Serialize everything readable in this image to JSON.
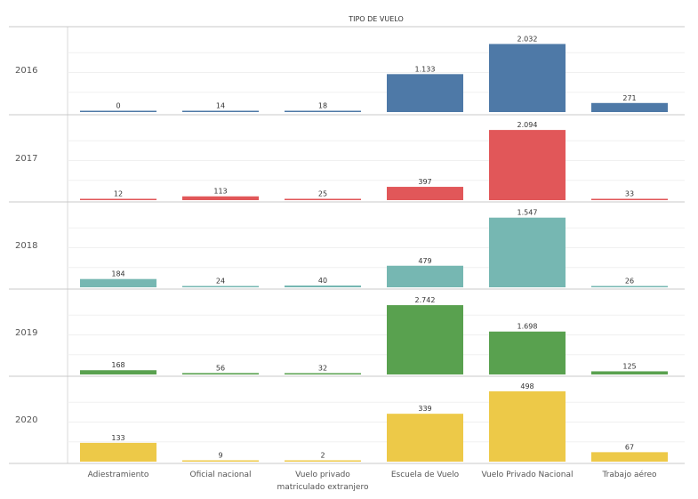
{
  "chart_data": {
    "type": "bar",
    "title": "TIPO DE VUELO",
    "categories": [
      "Adiestramiento",
      "Oficial nacional",
      "Vuelo privado matriculado extranjero",
      "Escuela de Vuelo",
      "Vuelo Privado Nacional",
      "Trabajo aéreo"
    ],
    "category_label_lines": [
      [
        "Adiestramiento"
      ],
      [
        "Oficial nacional"
      ],
      [
        "Vuelo privado",
        "matriculado extranjero"
      ],
      [
        "Escuela de Vuelo"
      ],
      [
        "Vuelo Privado Nacional"
      ],
      [
        "Trabajo aéreo"
      ]
    ],
    "series": [
      {
        "row": "2016",
        "values": [
          0,
          14,
          18,
          1133,
          2032,
          271
        ],
        "labels": [
          "0",
          "14",
          "18",
          "1.133",
          "2.032",
          "271"
        ],
        "color": "#4e79a7"
      },
      {
        "row": "2017",
        "values": [
          12,
          113,
          25,
          397,
          2094,
          33
        ],
        "labels": [
          "12",
          "113",
          "25",
          "397",
          "2.094",
          "33"
        ],
        "color": "#e15759"
      },
      {
        "row": "2018",
        "values": [
          184,
          24,
          40,
          479,
          1547,
          26
        ],
        "labels": [
          "184",
          "24",
          "40",
          "479",
          "1.547",
          "26"
        ],
        "color": "#76b7b2"
      },
      {
        "row": "2019",
        "values": [
          168,
          56,
          32,
          2742,
          1698,
          125
        ],
        "labels": [
          "168",
          "56",
          "32",
          "2.742",
          "1.698",
          "125"
        ],
        "color": "#59a14f"
      },
      {
        "row": "2020",
        "values": [
          133,
          9,
          2,
          339,
          498,
          67
        ],
        "labels": [
          "133",
          "9",
          "2",
          "339",
          "498",
          "67"
        ],
        "color": "#edc948"
      }
    ],
    "panel_ylims": [
      [
        0,
        2150
      ],
      [
        0,
        2150
      ],
      [
        0,
        1600
      ],
      [
        0,
        2850
      ],
      [
        0,
        510
      ]
    ],
    "grid": true,
    "legend": "none"
  }
}
